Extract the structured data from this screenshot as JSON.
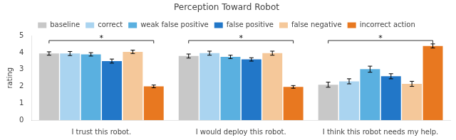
{
  "chart_data": {
    "type": "bar",
    "title": "Perception Toward Robot",
    "ylabel": "rating",
    "categories": [
      "I trust this robot.",
      "I would deploy this robot.",
      "I think this robot needs my help."
    ],
    "series": [
      {
        "name": "baseline",
        "color": "#c8c8c8",
        "values": [
          3.95,
          3.8,
          2.1
        ],
        "errors": [
          0.1,
          0.12,
          0.15
        ]
      },
      {
        "name": "correct",
        "color": "#aad4f0",
        "values": [
          3.95,
          3.97,
          2.3
        ],
        "errors": [
          0.12,
          0.12,
          0.15
        ]
      },
      {
        "name": "weak false positive",
        "color": "#5ab0e0",
        "values": [
          3.9,
          3.75,
          3.02
        ],
        "errors": [
          0.1,
          0.1,
          0.18
        ]
      },
      {
        "name": "false positive",
        "color": "#2277c8",
        "values": [
          3.5,
          3.6,
          2.6
        ],
        "errors": [
          0.12,
          0.1,
          0.15
        ]
      },
      {
        "name": "false negative",
        "color": "#f5c89a",
        "values": [
          4.05,
          3.97,
          2.15
        ],
        "errors": [
          0.1,
          0.12,
          0.15
        ]
      },
      {
        "name": "incorrect action",
        "color": "#e87820",
        "values": [
          2.0,
          1.97,
          4.4
        ],
        "errors": [
          0.08,
          0.08,
          0.12
        ]
      }
    ],
    "ylim": [
      0,
      5
    ],
    "yticks": [
      0,
      1,
      2,
      3,
      4,
      5
    ],
    "grid": false,
    "legend": "top",
    "annotations": [
      {
        "text": "*",
        "category": "I trust this robot.",
        "from": "baseline",
        "to": "incorrect action",
        "y": 4.72
      },
      {
        "text": "*",
        "category": "I would deploy this robot.",
        "from": "baseline",
        "to": "incorrect action",
        "y": 4.72
      },
      {
        "text": "*",
        "category": "I think this robot needs my help.",
        "from": "baseline",
        "to": "incorrect action",
        "y": 4.72
      }
    ]
  }
}
